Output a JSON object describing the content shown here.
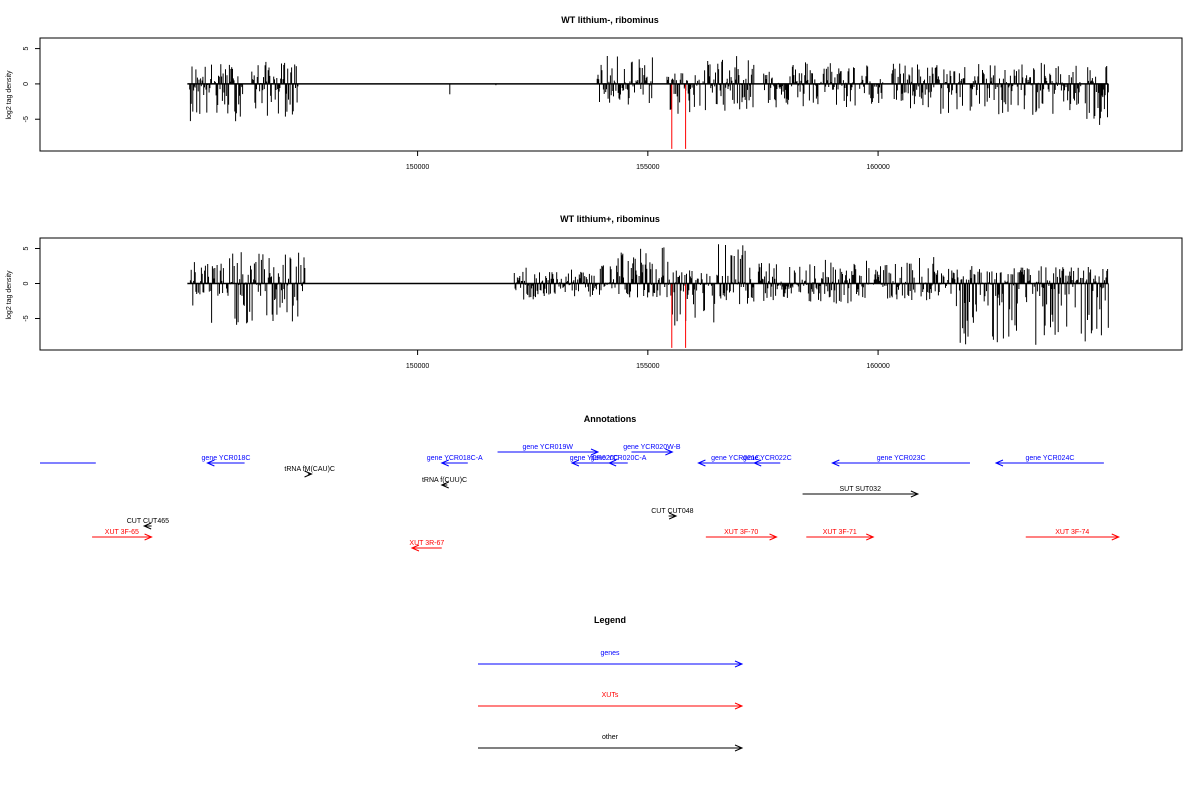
{
  "chart_data": [
    {
      "type": "bar",
      "title": "WT lithium-, ribominus",
      "xlabel": "",
      "ylabel": "log2 tag density",
      "xlim": [
        141800,
        166600
      ],
      "ylim": [
        -9.5,
        6.5
      ],
      "x_ticks": [
        150000,
        155000,
        160000
      ],
      "x_tick_labels": [
        "150000",
        "155000",
        "160000"
      ],
      "y_ticks": [
        5,
        0,
        -5
      ],
      "y_tick_labels": [
        "5",
        "0",
        "-5"
      ],
      "baseline_extent": [
        145000,
        165000
      ],
      "series": [
        {
          "color": "#000000",
          "regions": [
            {
              "x0": 145050,
              "x1": 146200,
              "lo": -5.3,
              "hi": 3.0
            },
            {
              "x0": 146400,
              "x1": 147400,
              "lo": -4.7,
              "hi": 3.2
            },
            {
              "x0": 150700,
              "x1": 150700,
              "lo": -2.0,
              "hi": 0
            },
            {
              "x0": 151700,
              "x1": 151700,
              "lo": -2.0,
              "hi": 0
            },
            {
              "x0": 152400,
              "x1": 152400,
              "lo": -1.5,
              "hi": 0
            },
            {
              "x0": 153900,
              "x1": 155100,
              "lo": -3.0,
              "hi": 4.0
            },
            {
              "x0": 155400,
              "x1": 156250,
              "lo": -4.5,
              "hi": 2.0
            },
            {
              "x0": 156300,
              "x1": 157300,
              "lo": -3.8,
              "hi": 4.0
            },
            {
              "x0": 157500,
              "x1": 159500,
              "lo": -3.5,
              "hi": 3.5
            },
            {
              "x0": 159600,
              "x1": 160100,
              "lo": -3.0,
              "hi": 3.2
            },
            {
              "x0": 160300,
              "x1": 161900,
              "lo": -4.5,
              "hi": 3.0
            },
            {
              "x0": 162000,
              "x1": 164400,
              "lo": -4.5,
              "hi": 3.0
            },
            {
              "x0": 164500,
              "x1": 165000,
              "lo": -6.8,
              "hi": 3.0
            }
          ]
        },
        {
          "color": "#ff0000",
          "lines": [
            {
              "x": 155520,
              "value": -9.2
            },
            {
              "x": 155820,
              "value": -9.2
            }
          ]
        }
      ]
    },
    {
      "type": "bar",
      "title": "WT lithium+, ribominus",
      "xlabel": "",
      "ylabel": "log2 tag density",
      "xlim": [
        141800,
        166600
      ],
      "ylim": [
        -9.5,
        6.5
      ],
      "x_ticks": [
        150000,
        155000,
        160000
      ],
      "x_tick_labels": [
        "150000",
        "155000",
        "160000"
      ],
      "y_ticks": [
        5,
        0,
        -5
      ],
      "y_tick_labels": [
        "5",
        "0",
        "-5"
      ],
      "baseline_extent": [
        145000,
        165000
      ],
      "series": [
        {
          "color": "#000000",
          "regions": [
            {
              "x0": 145050,
              "x1": 145800,
              "lo": -7.0,
              "hi": 3.5
            },
            {
              "x0": 145850,
              "x1": 147550,
              "lo": -6.0,
              "hi": 4.5
            },
            {
              "x0": 152100,
              "x1": 152800,
              "lo": -2.5,
              "hi": 2.5
            },
            {
              "x0": 152800,
              "x1": 153900,
              "lo": -2.0,
              "hi": 2.0
            },
            {
              "x0": 153950,
              "x1": 155500,
              "lo": -2.0,
              "hi": 5.5
            },
            {
              "x0": 155500,
              "x1": 156450,
              "lo": -6.0,
              "hi": 2.0
            },
            {
              "x0": 156500,
              "x1": 157300,
              "lo": -3.0,
              "hi": 5.8
            },
            {
              "x0": 157400,
              "x1": 158200,
              "lo": -2.5,
              "hi": 3.0
            },
            {
              "x0": 158200,
              "x1": 159800,
              "lo": -3.0,
              "hi": 3.5
            },
            {
              "x0": 159900,
              "x1": 160800,
              "lo": -2.5,
              "hi": 3.0
            },
            {
              "x0": 160900,
              "x1": 161600,
              "lo": -2.5,
              "hi": 4.5
            },
            {
              "x0": 161600,
              "x1": 165000,
              "lo": -8.8,
              "hi": 2.5
            }
          ]
        },
        {
          "color": "#ff0000",
          "lines": [
            {
              "x": 155520,
              "value": -9.2
            },
            {
              "x": 155820,
              "value": -9.2
            }
          ]
        }
      ]
    }
  ],
  "annotations": {
    "title": "Annotations",
    "colors": {
      "genes": "#0000ff",
      "XUTs": "#ff0000",
      "other": "#000000"
    },
    "features": [
      {
        "label": "",
        "kind": "genes",
        "strand": "-",
        "start": 141800,
        "end": 143300
      },
      {
        "label": "gene YCR018C",
        "kind": "genes",
        "strand": "-",
        "start": 146300,
        "end": 147300
      },
      {
        "label": "tRNA fM(CAU)C",
        "kind": "other",
        "strand": "+",
        "start": 149000,
        "end": 149100
      },
      {
        "label": "gene YCR018C-A",
        "kind": "genes",
        "strand": "-",
        "start": 152600,
        "end": 153300
      },
      {
        "label": "tRNA f(CUU)C",
        "kind": "other",
        "strand": "-",
        "start": 152600,
        "end": 152750
      },
      {
        "label": "gene YCR019W",
        "kind": "genes",
        "strand": "+",
        "start": 154100,
        "end": 156800
      },
      {
        "label": "gene YCR020C",
        "kind": "genes",
        "strand": "-",
        "start": 156100,
        "end": 157300
      },
      {
        "label": "gene YCR020C-A",
        "kind": "genes",
        "strand": "-",
        "start": 157100,
        "end": 157600
      },
      {
        "label": "gene YCR020W-B",
        "kind": "genes",
        "strand": "+",
        "start": 157700,
        "end": 158800
      },
      {
        "label": "gene YCR021C",
        "kind": "genes",
        "strand": "-",
        "start": 159500,
        "end": 161500
      },
      {
        "label": "gene YCR022C",
        "kind": "genes",
        "strand": "-",
        "start": 161000,
        "end": 161700
      },
      {
        "label": "gene YCR023C",
        "kind": "genes",
        "strand": "-",
        "start": 163100,
        "end": 166800
      },
      {
        "label": "gene YCR024C",
        "kind": "genes",
        "strand": "-",
        "start": 167500,
        "end": 170400
      },
      {
        "label": "SUT SUT032",
        "kind": "other",
        "strand": "+",
        "start": 162300,
        "end": 165400
      },
      {
        "label": "CUT CUT048",
        "kind": "other",
        "strand": "+",
        "start": 158700,
        "end": 158900
      },
      {
        "label": "CUT CUT465",
        "kind": "other",
        "strand": "-",
        "start": 144600,
        "end": 144800
      },
      {
        "label": "XUT 3F-65",
        "kind": "XUTs",
        "strand": "+",
        "start": 143200,
        "end": 144800
      },
      {
        "label": "XUT 3R-67",
        "kind": "XUTs",
        "strand": "-",
        "start": 151800,
        "end": 152600
      },
      {
        "label": "XUT 3F-70",
        "kind": "XUTs",
        "strand": "+",
        "start": 159700,
        "end": 161600
      },
      {
        "label": "XUT 3F-71",
        "kind": "XUTs",
        "strand": "+",
        "start": 162400,
        "end": 164200
      },
      {
        "label": "XUT 3F-74",
        "kind": "XUTs",
        "strand": "+",
        "start": 168300,
        "end": 170800
      }
    ]
  },
  "legend": {
    "title": "Legend",
    "items": [
      {
        "label": "genes",
        "color": "#0000ff"
      },
      {
        "label": "XUTs",
        "color": "#ff0000"
      },
      {
        "label": "other",
        "color": "#000000"
      }
    ]
  }
}
